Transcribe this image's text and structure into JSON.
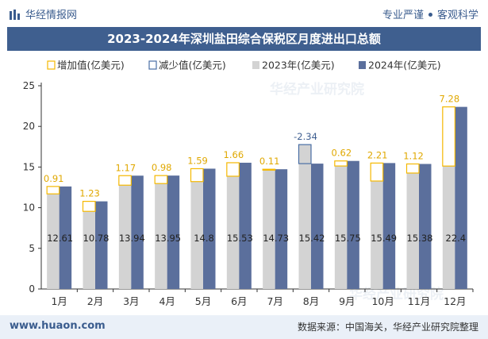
{
  "header": {
    "brand": "华经情报网",
    "tagline_left": "专业严谨",
    "tagline_right": "客观科学"
  },
  "chart_data": {
    "type": "bar",
    "title": "2023-2024年深圳盐田综合保税区月度进出口总额",
    "categories": [
      "1月",
      "2月",
      "3月",
      "4月",
      "5月",
      "6月",
      "7月",
      "8月",
      "9月",
      "10月",
      "11月",
      "12月"
    ],
    "series": [
      {
        "name": "2023年(亿美元)",
        "values": [
          11.7,
          9.55,
          12.77,
          12.97,
          13.21,
          13.87,
          14.62,
          17.76,
          15.13,
          13.28,
          14.26,
          15.12
        ],
        "color": "#d3d3d3"
      },
      {
        "name": "2024年(亿美元)",
        "values": [
          12.61,
          10.78,
          13.94,
          13.95,
          14.8,
          15.53,
          14.73,
          15.42,
          15.75,
          15.49,
          15.38,
          22.4
        ],
        "color": "#5b6f9c"
      }
    ],
    "change": {
      "increase_name": "增加值(亿美元)",
      "decrease_name": "减少值(亿美元)",
      "increase_color": "#f5b800",
      "decrease_color": "#4a6fa5",
      "values": [
        0.91,
        1.23,
        1.17,
        0.98,
        1.59,
        1.66,
        0.11,
        -2.34,
        0.62,
        2.21,
        1.12,
        7.28
      ]
    },
    "ylim": [
      0,
      25
    ],
    "yticks": [
      0,
      5,
      10,
      15,
      20,
      25
    ],
    "xlabel": "",
    "ylabel": "",
    "legend_position": "top-left",
    "grid": false
  },
  "watermark": "华经产业研究院",
  "footer": {
    "url": "www.huaon.com",
    "source": "数据来源：中国海关，华经产业研究院整理"
  }
}
